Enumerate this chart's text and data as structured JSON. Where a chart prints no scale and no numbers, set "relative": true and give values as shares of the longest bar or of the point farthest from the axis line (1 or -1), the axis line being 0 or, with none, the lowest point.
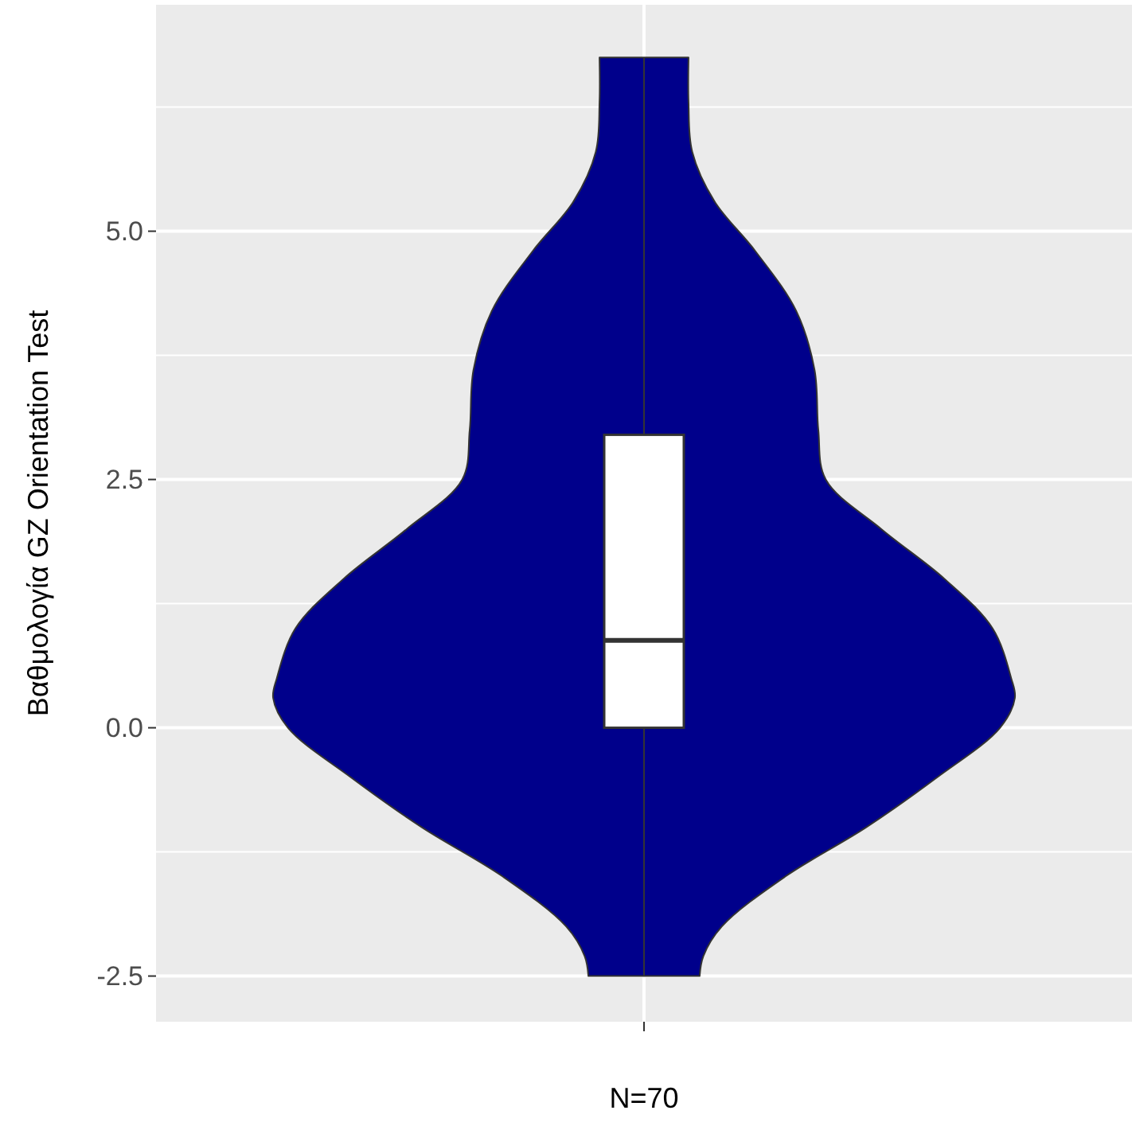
{
  "chart_data": [
    {
      "type": "area",
      "orientation": "horizontal",
      "relative": true,
      "grid": true,
      "ylim": [
        -2.96,
        7.28
      ],
      "x": [
        -2.5,
        -2.3,
        -2.0,
        -1.5,
        -1.0,
        -0.5,
        0.0,
        0.3,
        0.5,
        1.0,
        1.5,
        2.0,
        2.5,
        3.0,
        3.6,
        4.2,
        4.8,
        5.3,
        5.8,
        6.3,
        6.75
      ],
      "series": [
        {
          "color": "#00008b",
          "values": [
            0.15,
            0.16,
            0.21,
            0.38,
            0.6,
            0.79,
            0.96,
            1,
            0.99,
            0.94,
            0.81,
            0.64,
            0.49,
            0.47,
            0.46,
            0.41,
            0.3,
            0.19,
            0.13,
            0.12,
            0.12
          ]
        }
      ]
    },
    {
      "type": "box",
      "ylabel": "Βαθμολογία GZ Orientation Test",
      "xlabel": "N=70",
      "categories": [
        null
      ],
      "ylim": [
        -2.96,
        7.28
      ],
      "yticks": [
        {
          "value": -2.5,
          "label": "-2.5"
        },
        {
          "value": 0,
          "label": "0.0"
        },
        {
          "value": 2.5,
          "label": "2.5"
        },
        {
          "value": 5,
          "label": "5.0"
        }
      ],
      "grid": true,
      "boxes": [
        {
          "low": -2.5,
          "q1": 0,
          "median": 0.88,
          "q3": 2.95,
          "high": 6.75
        }
      ]
    }
  ]
}
